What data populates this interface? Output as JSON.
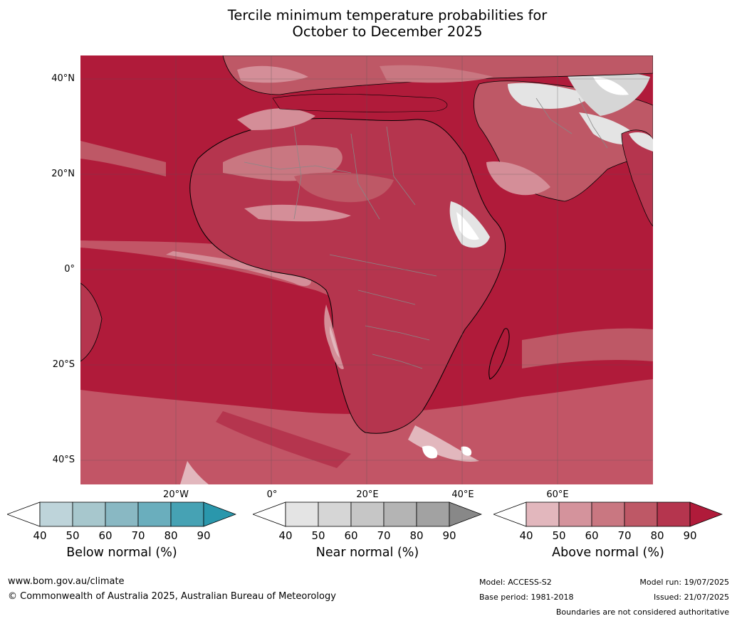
{
  "title_line1": "Tercile minimum temperature probabilities for",
  "title_line2": "October to December 2025",
  "lat_labels": [
    "40°N",
    "20°N",
    "0°",
    "20°S",
    "40°S"
  ],
  "lon_labels": [
    "20°W",
    "0°",
    "20°E",
    "40°E",
    "60°E"
  ],
  "colorbars": {
    "below": {
      "caption": "Below normal (%)",
      "ticks": [
        "40",
        "50",
        "60",
        "70",
        "80",
        "90"
      ],
      "colors": [
        "#ffffff",
        "#bed4da",
        "#a7c7cd",
        "#89b8c3",
        "#6aaebd",
        "#46a2b4",
        "#2a97ac"
      ]
    },
    "near": {
      "caption": "Near normal (%)",
      "ticks": [
        "40",
        "50",
        "60",
        "70",
        "80",
        "90"
      ],
      "colors": [
        "#ffffff",
        "#e4e4e4",
        "#d6d6d6",
        "#c6c6c6",
        "#b4b4b4",
        "#a2a2a2",
        "#888888"
      ]
    },
    "above": {
      "caption": "Above normal (%)",
      "ticks": [
        "40",
        "50",
        "60",
        "70",
        "80",
        "90"
      ],
      "colors": [
        "#ffffff",
        "#e2b7bd",
        "#d4939c",
        "#c97781",
        "#be5866",
        "#b5354e",
        "#b01b3a"
      ]
    }
  },
  "footer": {
    "website": "www.bom.gov.au/climate",
    "copyright": "© Commonwealth of Australia 2025, Australian Bureau of Meteorology",
    "model": "Model: ACCESS-S2",
    "base_period": "Base period: 1981-2018",
    "model_run": "Model run: 19/07/2025",
    "issued": "Issued: 21/07/2025",
    "disclaimer": "Boundaries are not considered authoritative"
  }
}
